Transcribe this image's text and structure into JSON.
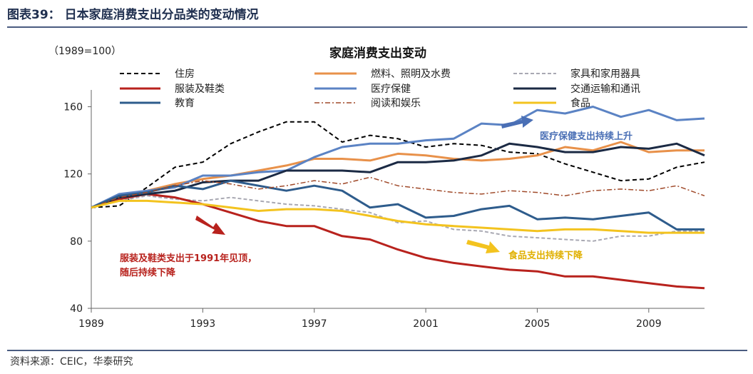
{
  "header": {
    "title": "图表39：  日本家庭消费支出分品类的变动情况"
  },
  "source": "资料来源：CEIC，华泰研究",
  "chart_data": {
    "type": "line",
    "title": "家庭消费支出变动",
    "unit_label": "（1989=100）",
    "xlabel": "",
    "ylabel": "",
    "xlim": [
      1989,
      2011
    ],
    "ylim": [
      40,
      170
    ],
    "x_ticks": [
      "1989",
      "1993",
      "1997",
      "2001",
      "2005",
      "2009"
    ],
    "y_ticks": [
      "40",
      "80",
      "120",
      "160"
    ],
    "x": [
      1989,
      1990,
      1991,
      1992,
      1993,
      1994,
      1995,
      1996,
      1997,
      1998,
      1999,
      2000,
      2001,
      2002,
      2003,
      2004,
      2005,
      2006,
      2007,
      2008,
      2009,
      2010,
      2011
    ],
    "series": [
      {
        "name": "住房",
        "color": "#000000",
        "dash": "6,4",
        "width": 2,
        "values": [
          100,
          101,
          112,
          124,
          127,
          138,
          145,
          151,
          151,
          139,
          143,
          141,
          136,
          138,
          137,
          133,
          132,
          126,
          121,
          116,
          117,
          124,
          127
        ]
      },
      {
        "name": "燃料、照明及水费",
        "color": "#e8914a",
        "dash": "",
        "width": 3,
        "values": [
          100,
          105,
          110,
          114,
          117,
          119,
          122,
          125,
          129,
          129,
          128,
          132,
          131,
          129,
          128,
          129,
          131,
          136,
          134,
          139,
          133,
          134,
          134
        ]
      },
      {
        "name": "家具和家用器具",
        "color": "#a9a9b3",
        "dash": "5,3",
        "width": 2,
        "values": [
          100,
          104,
          107,
          105,
          104,
          106,
          104,
          102,
          101,
          99,
          97,
          91,
          92,
          87,
          86,
          83,
          82,
          81,
          80,
          83,
          83,
          86,
          86
        ]
      },
      {
        "name": "服装及鞋类",
        "color": "#b8221d",
        "dash": "",
        "width": 3,
        "values": [
          100,
          105,
          108,
          106,
          102,
          97,
          92,
          89,
          89,
          83,
          81,
          75,
          70,
          67,
          65,
          63,
          62,
          59,
          59,
          57,
          55,
          53,
          52
        ]
      },
      {
        "name": "医疗保健",
        "color": "#5b83c4",
        "dash": "",
        "width": 3,
        "values": [
          100,
          108,
          110,
          112,
          119,
          119,
          121,
          122,
          130,
          136,
          138,
          138,
          140,
          141,
          150,
          149,
          158,
          156,
          160,
          154,
          158,
          152,
          153
        ]
      },
      {
        "name": "交通运输和通讯",
        "color": "#1b2a44",
        "dash": "",
        "width": 3,
        "values": [
          100,
          106,
          108,
          110,
          115,
          116,
          116,
          122,
          122,
          122,
          121,
          127,
          127,
          128,
          131,
          138,
          136,
          133,
          133,
          136,
          135,
          138,
          131
        ]
      },
      {
        "name": "教育",
        "color": "#2e5c8c",
        "dash": "",
        "width": 3,
        "values": [
          100,
          107,
          109,
          113,
          111,
          116,
          113,
          110,
          113,
          110,
          100,
          102,
          94,
          95,
          99,
          101,
          93,
          94,
          93,
          95,
          97,
          87,
          87
        ]
      },
      {
        "name": "阅读和娱乐",
        "color": "#a04a2a",
        "dash": "7,3,2,3",
        "width": 1.5,
        "values": [
          100,
          106,
          109,
          113,
          116,
          114,
          111,
          113,
          116,
          114,
          118,
          113,
          111,
          109,
          108,
          110,
          109,
          107,
          110,
          111,
          110,
          113,
          107
        ]
      },
      {
        "name": "食品",
        "color": "#f3c31f",
        "dash": "",
        "width": 3,
        "values": [
          100,
          104,
          104,
          103,
          102,
          100,
          98,
          99,
          99,
          98,
          95,
          92,
          90,
          89,
          88,
          87,
          86,
          87,
          87,
          86,
          85,
          85,
          85
        ]
      }
    ],
    "annotations": {
      "medical": "医疗保健支出持续上升",
      "clothing_line1": "服装及鞋类支出于1991年见顶，",
      "clothing_line2": "随后持续下降",
      "food": "食品支出持续下降"
    },
    "arrow_colors": {
      "medical": "#4a6fb5",
      "clothing": "#b8221d",
      "food": "#f3c31f"
    }
  }
}
